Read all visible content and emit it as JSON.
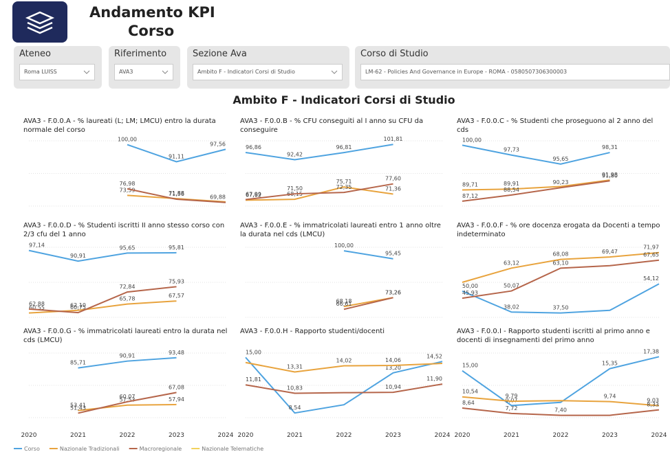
{
  "header": {
    "title_line1": "Andamento KPI",
    "title_line2": "Corso"
  },
  "filters": [
    {
      "label": "Ateneo",
      "value": "Roma LUISS"
    },
    {
      "label": "Riferimento",
      "value": "AVA3"
    },
    {
      "label": "Sezione Ava",
      "value": "Ambito F - Indicatori Corsi di Studio"
    },
    {
      "label": "Corso di Studio",
      "value": "LM-62 - Policies And Governance in Europe - ROMA - 0580507306300003"
    }
  ],
  "section_title": "Ambito F - Indicatori Corsi di Studio",
  "legend": [
    {
      "name": "Corso",
      "color": "#4ea3e0"
    },
    {
      "name": "Nazionale Tradizionali",
      "color": "#e8a33d"
    },
    {
      "name": "Macroregionale",
      "color": "#b5654a"
    },
    {
      "name": "Nazionale Telematiche",
      "color": "#f2d15c"
    }
  ],
  "chart_data": [
    {
      "type": "line",
      "title": "AVA3 - F.0.0.A - % laureati (L; LM; LMCU) entro la durata normale del corso",
      "categories": [
        "2020",
        "2021",
        "2022",
        "2023",
        "2024"
      ],
      "ylim": [
        68,
        102
      ],
      "series": [
        {
          "name": "Corso",
          "values": [
            null,
            null,
            100.0,
            91.11,
            97.56
          ],
          "value_labels": [
            null,
            null,
            "100,00",
            "91,11",
            "97,56"
          ]
        },
        {
          "name": "Nazionale Tradizionali",
          "values": [
            null,
            null,
            73.59,
            71.88,
            70.2
          ],
          "value_labels": [
            null,
            null,
            "73,59",
            "71,88",
            null
          ]
        },
        {
          "name": "Macroregionale",
          "values": [
            null,
            null,
            76.98,
            71.56,
            69.88
          ],
          "value_labels": [
            null,
            null,
            "76,98",
            "71,56",
            "69,88"
          ]
        }
      ]
    },
    {
      "type": "line",
      "title": "AVA3 - F.0.0.B - % CFU conseguiti al I anno su CFU da conseguire",
      "categories": [
        "2020",
        "2021",
        "2022",
        "2023",
        "2024"
      ],
      "ylim": [
        64,
        104
      ],
      "series": [
        {
          "name": "Corso",
          "values": [
            96.86,
            92.42,
            96.81,
            101.81,
            null
          ],
          "value_labels": [
            "96,86",
            "92,42",
            "96,81",
            "101,81",
            null
          ]
        },
        {
          "name": "Nazionale Tradizionali",
          "values": [
            67.62,
            68.15,
            75.71,
            71.36,
            null
          ],
          "value_labels": [
            "67,62",
            "68,15",
            "75,71",
            "71,36",
            null
          ]
        },
        {
          "name": "Macroregionale",
          "values": [
            67.99,
            71.5,
            72.35,
            77.6,
            null
          ],
          "value_labels": [
            "67,99",
            "71,50",
            "72,35",
            "77,60",
            null
          ]
        }
      ]
    },
    {
      "type": "line",
      "title": "AVA3 - F.0.0.C - % Studenti che proseguono al 2 anno del cds",
      "categories": [
        "2020",
        "2021",
        "2022",
        "2023",
        "2024"
      ],
      "ylim": [
        86,
        101
      ],
      "series": [
        {
          "name": "Corso",
          "values": [
            100.0,
            97.73,
            95.65,
            98.31,
            null
          ],
          "value_labels": [
            "100,00",
            "97,73",
            "95,65",
            "98,31",
            null
          ]
        },
        {
          "name": "Nazionale Tradizionali",
          "values": [
            89.71,
            89.91,
            90.5,
            91.98,
            null
          ],
          "value_labels": [
            "89,71",
            "89,91",
            null,
            "91,98",
            null
          ]
        },
        {
          "name": "Macroregionale",
          "values": [
            87.12,
            88.54,
            90.23,
            91.8,
            null
          ],
          "value_labels": [
            "87,12",
            "88,54",
            "90,23",
            "91,80",
            null
          ]
        }
      ]
    },
    {
      "type": "line",
      "title": "AVA3 - F.0.0.D - % Studenti iscritti II anno stesso corso con 2/3 cfu del 1 anno",
      "categories": [
        "2020",
        "2021",
        "2022",
        "2023",
        "2024"
      ],
      "ylim": [
        58,
        99
      ],
      "series": [
        {
          "name": "Corso",
          "values": [
            97.14,
            90.91,
            95.65,
            95.81,
            null
          ],
          "value_labels": [
            "97,14",
            "90,91",
            "95,65",
            "95,81",
            null
          ]
        },
        {
          "name": "Nazionale Tradizionali",
          "values": [
            60.55,
            62.1,
            65.78,
            67.57,
            null
          ],
          "value_labels": [
            "60,55",
            "62,10",
            "65,78",
            "67,57",
            null
          ]
        },
        {
          "name": "Macroregionale",
          "values": [
            62.88,
            60.75,
            72.84,
            75.93,
            null
          ],
          "value_labels": [
            "62,88",
            "60,75",
            "72,84",
            "75,93",
            null
          ]
        }
      ]
    },
    {
      "type": "line",
      "title": "AVA3 - F.0.0.E - % immatricolati laureati entro 1 anno oltre la durata nel cds (LMCU)",
      "categories": [
        "2020",
        "2021",
        "2022",
        "2023",
        "2024"
      ],
      "ylim": [
        62,
        102
      ],
      "series": [
        {
          "name": "Corso",
          "values": [
            null,
            null,
            100.0,
            95.45,
            null
          ],
          "value_labels": [
            null,
            null,
            "100,00",
            "95,45",
            null
          ]
        },
        {
          "name": "Nazionale Tradizionali",
          "values": [
            null,
            null,
            68.18,
            73.26,
            null
          ],
          "value_labels": [
            null,
            null,
            "68,18",
            "73,26",
            null
          ]
        },
        {
          "name": "Macroregionale",
          "values": [
            null,
            null,
            66.61,
            73.26,
            null
          ],
          "value_labels": [
            null,
            null,
            "66,61",
            "73,26",
            null
          ]
        }
      ]
    },
    {
      "type": "line",
      "title": "AVA3 - F.0.0.F - % ore docenza erogata da Docenti a tempo indeterminato",
      "categories": [
        "2020",
        "2021",
        "2022",
        "2023",
        "2024"
      ],
      "ylim": [
        35,
        75
      ],
      "series": [
        {
          "name": "Corso",
          "values": [
            50.0,
            38.02,
            37.5,
            39.0,
            54.12
          ],
          "value_labels": [
            "50,00",
            "38,02",
            "37,50",
            null,
            "54,12"
          ]
        },
        {
          "name": "Nazionale Tradizionali",
          "values": [
            55.0,
            63.12,
            68.08,
            69.47,
            71.97
          ],
          "value_labels": [
            null,
            "63,12",
            "68,08",
            "69,47",
            "71,97"
          ]
        },
        {
          "name": "Macroregionale",
          "values": [
            45.93,
            50.07,
            63.1,
            64.5,
            67.65
          ],
          "value_labels": [
            "45,93",
            "50,07",
            "63,10",
            null,
            "67,65"
          ]
        }
      ]
    },
    {
      "type": "line",
      "title": "AVA3 - F.0.0.G - % immatricolati laureati entro la durata nel cds (LMCU)",
      "categories": [
        "2020",
        "2021",
        "2022",
        "2023",
        "2024"
      ],
      "ylim": [
        48,
        97
      ],
      "series": [
        {
          "name": "Corso",
          "values": [
            null,
            85.71,
            90.91,
            93.48,
            null
          ],
          "value_labels": [
            null,
            "85,71",
            "90,91",
            "93,48",
            null
          ]
        },
        {
          "name": "Nazionale Tradizionali",
          "values": [
            null,
            53.41,
            57.53,
            57.94,
            null
          ],
          "value_labels": [
            null,
            "53,41",
            "57,53",
            "57,94",
            null
          ]
        },
        {
          "name": "Macroregionale",
          "values": [
            null,
            51.43,
            60.07,
            67.08,
            null
          ],
          "value_labels": [
            null,
            "51,43",
            "60,07",
            "67,08",
            null
          ]
        }
      ]
    },
    {
      "type": "line",
      "title": "AVA3 - F.0.0.H - Rapporto studenti/docenti",
      "categories": [
        "2020",
        "2021",
        "2022",
        "2023",
        "2024"
      ],
      "ylim": [
        8,
        15.5
      ],
      "series": [
        {
          "name": "Corso",
          "values": [
            15.0,
            8.54,
            9.5,
            13.2,
            14.52
          ],
          "value_labels": [
            "15,00",
            "8,54",
            null,
            "13,20",
            "14,52"
          ]
        },
        {
          "name": "Nazionale Tradizionali",
          "values": [
            14.4,
            13.31,
            14.02,
            14.06,
            14.3
          ],
          "value_labels": [
            null,
            "13,31",
            "14,02",
            "14,06",
            null
          ]
        },
        {
          "name": "Macroregionale",
          "values": [
            11.81,
            10.83,
            10.9,
            10.94,
            11.9
          ],
          "value_labels": [
            "11,81",
            "10,83",
            null,
            "10,94",
            "11,90"
          ]
        }
      ]
    },
    {
      "type": "line",
      "title": "AVA3 - F.0.0.I - Rapporto studenti iscritti al primo anno e docenti di insegnamenti del primo anno",
      "categories": [
        "2020",
        "2021",
        "2022",
        "2023",
        "2024"
      ],
      "ylim": [
        7,
        18
      ],
      "series": [
        {
          "name": "Corso",
          "values": [
            15.0,
            9.07,
            9.6,
            15.35,
            17.38
          ],
          "value_labels": [
            "15,00",
            "9,07",
            null,
            "15,35",
            "17,38"
          ]
        },
        {
          "name": "Nazionale Tradizionali",
          "values": [
            10.54,
            9.79,
            9.9,
            9.74,
            9.03
          ],
          "value_labels": [
            "10,54",
            "9,79",
            null,
            "9,74",
            "9,03"
          ]
        },
        {
          "name": "Macroregionale",
          "values": [
            8.64,
            7.72,
            7.4,
            7.4,
            8.33
          ],
          "value_labels": [
            "8,64",
            "7,72",
            "7,40",
            null,
            "8,33"
          ]
        }
      ]
    }
  ]
}
